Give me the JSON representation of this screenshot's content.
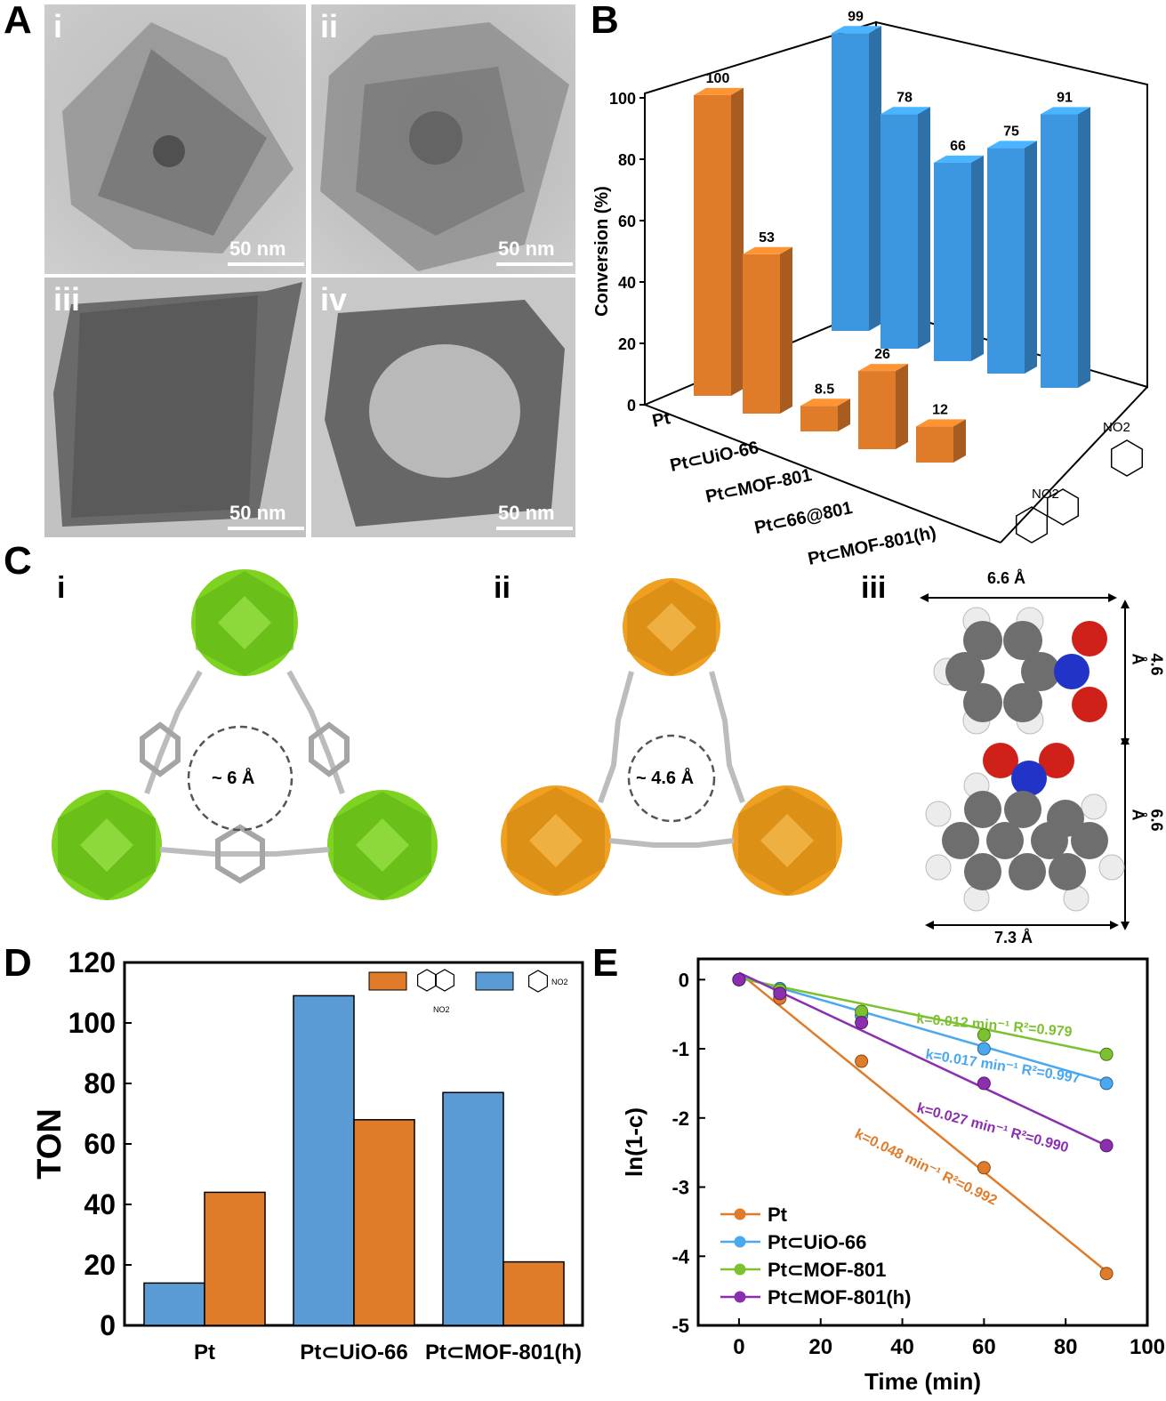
{
  "panels": {
    "A": "A",
    "B": "B",
    "C": "C",
    "D": "D",
    "E": "E"
  },
  "panelA": {
    "images": [
      {
        "label": "i",
        "scale": "50 nm"
      },
      {
        "label": "ii",
        "scale": "50 nm"
      },
      {
        "label": "iii",
        "scale": "50 nm"
      },
      {
        "label": "iv",
        "scale": "50 nm"
      }
    ]
  },
  "panelC": {
    "labels": [
      "i",
      "ii",
      "iii"
    ],
    "pore_i": "~ 6 Å",
    "pore_ii": "~ 4.6 Å",
    "dims": {
      "nb_width": "6.6 Å",
      "nb_height": "4.6 Å",
      "nn_height": "6.6 Å",
      "nn_width": "7.3 Å"
    },
    "colors": {
      "green": "#7ed321",
      "orange": "#f0a020"
    }
  },
  "chart_data": [
    {
      "type": "bar",
      "panel": "B",
      "ylabel": "Conversion (%)",
      "yticks": [
        "0",
        "20",
        "40",
        "60",
        "80",
        "100"
      ],
      "ylim": [
        0,
        100
      ],
      "categories": [
        "Pt",
        "Pt⊂UiO-66",
        "Pt⊂MOF-801",
        "Pt⊂66@801",
        "Pt⊂MOF-801(h)"
      ],
      "series": [
        {
          "name": "",
          "color": "#e07b2a",
          "values": [
            100,
            53,
            8.5,
            26,
            12
          ],
          "labels": [
            "100",
            "53",
            "8.5",
            "26",
            "12"
          ]
        },
        {
          "name": "",
          "color": "#3d96e0",
          "values": [
            99,
            78,
            66,
            75,
            91
          ],
          "labels": [
            "99",
            "78",
            "66",
            "75",
            "91"
          ]
        }
      ],
      "depth_labels": [
        "NO2",
        "NO2"
      ]
    },
    {
      "type": "bar",
      "panel": "D",
      "ylabel": "TON",
      "categories": [
        "Pt",
        "Pt⊂UiO-66",
        "Pt⊂MOF-801(h)"
      ],
      "yticks": [
        "0",
        "20",
        "40",
        "60",
        "80",
        "100",
        "120"
      ],
      "ylim": [
        0,
        120
      ],
      "series": [
        {
          "name": "",
          "color": "#5b9bd5",
          "values": [
            14,
            109,
            77
          ]
        },
        {
          "name": "",
          "color": "#e07b2a",
          "values": [
            44,
            68,
            21
          ]
        }
      ],
      "legend_labels": [
        "NO2",
        "NO2"
      ]
    },
    {
      "type": "scatter",
      "panel": "E",
      "xlabel": "Time (min)",
      "ylabel": "ln(1-c)",
      "xlim": [
        -10,
        100
      ],
      "ylim": [
        -5,
        0.3
      ],
      "xticks": [
        "0",
        "20",
        "40",
        "60",
        "80",
        "100"
      ],
      "yticks": [
        "0",
        "-1",
        "-2",
        "-3",
        "-4",
        "-5"
      ],
      "x": [
        0,
        10,
        30,
        60,
        90
      ],
      "series": [
        {
          "name": "Pt",
          "color": "#e07b2a",
          "values": [
            0,
            -0.27,
            -1.18,
            -2.72,
            -4.25
          ],
          "fit": [
            0.1,
            -4.22
          ],
          "annotation": "k=0.048 min⁻¹ R²=0.992"
        },
        {
          "name": "Pt⊂UiO-66",
          "color": "#4aa8f0",
          "values": [
            0,
            -0.13,
            -0.52,
            -1.0,
            -1.5
          ],
          "fit": [
            0.05,
            -1.48
          ],
          "annotation": "k=0.017 min⁻¹ R²=0.997"
        },
        {
          "name": "Pt⊂MOF-801",
          "color": "#7cc230",
          "values": [
            0,
            -0.15,
            -0.46,
            -0.8,
            -1.08
          ],
          "fit": [
            0.02,
            -1.08
          ],
          "annotation": "k=0.012 min⁻¹ R²=0.979"
        },
        {
          "name": "Pt⊂MOF-801(h)",
          "color": "#8b2fb0",
          "values": [
            0,
            -0.2,
            -0.62,
            -1.5,
            -2.4
          ],
          "fit": [
            0.1,
            -2.4
          ],
          "annotation": "k=0.027 min⁻¹ R²=0.990"
        }
      ]
    }
  ]
}
